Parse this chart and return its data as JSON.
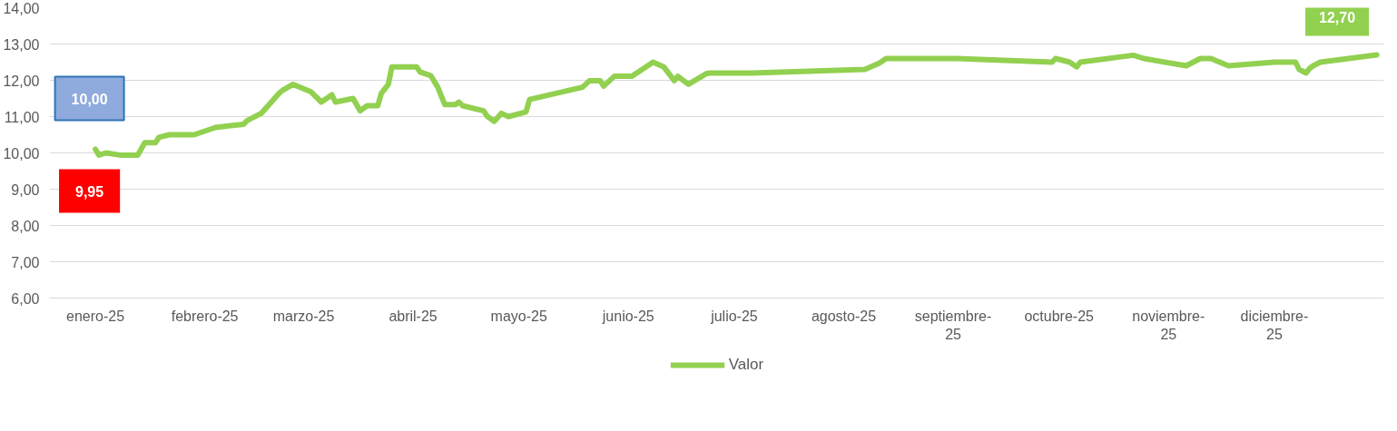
{
  "chart_data": {
    "type": "line",
    "x": [
      "2025-01-01",
      "2025-01-02",
      "2025-01-04",
      "2025-01-08",
      "2025-01-13",
      "2025-01-15",
      "2025-01-18",
      "2025-01-19",
      "2025-01-22",
      "2025-01-29",
      "2025-02-04",
      "2025-02-12",
      "2025-02-13",
      "2025-02-17",
      "2025-02-22",
      "2025-02-23",
      "2025-02-26",
      "2025-03-03",
      "2025-03-06",
      "2025-03-09",
      "2025-03-10",
      "2025-03-15",
      "2025-03-17",
      "2025-03-19",
      "2025-03-22",
      "2025-03-23",
      "2025-03-25",
      "2025-03-26",
      "2025-04-02",
      "2025-04-03",
      "2025-04-06",
      "2025-04-08",
      "2025-04-10",
      "2025-04-13",
      "2025-04-14",
      "2025-04-15",
      "2025-04-21",
      "2025-04-22",
      "2025-04-24",
      "2025-04-26",
      "2025-04-28",
      "2025-05-03",
      "2025-05-04",
      "2025-05-19",
      "2025-05-21",
      "2025-05-24",
      "2025-05-25",
      "2025-05-28",
      "2025-06-02",
      "2025-06-08",
      "2025-06-11",
      "2025-06-14",
      "2025-06-15",
      "2025-06-18",
      "2025-06-23",
      "2025-06-24",
      "2025-07-06",
      "2025-08-07",
      "2025-08-11",
      "2025-08-13",
      "2025-09-02",
      "2025-09-29",
      "2025-09-30",
      "2025-10-04",
      "2025-10-06",
      "2025-10-07",
      "2025-10-22",
      "2025-10-25",
      "2025-11-06",
      "2025-11-08",
      "2025-11-10",
      "2025-11-13",
      "2025-11-18",
      "2025-12-01",
      "2025-12-07",
      "2025-12-08",
      "2025-12-10",
      "2025-12-11",
      "2025-12-12",
      "2025-12-14",
      "2025-12-30"
    ],
    "series": [
      {
        "name": "Valor",
        "color": "#92d050",
        "values": [
          10.1,
          9.94,
          10.0,
          9.94,
          9.94,
          10.28,
          10.28,
          10.43,
          10.5,
          10.5,
          10.7,
          10.79,
          10.89,
          11.09,
          11.64,
          11.72,
          11.89,
          11.69,
          11.4,
          11.6,
          11.4,
          11.5,
          11.16,
          11.3,
          11.3,
          11.64,
          11.89,
          12.37,
          12.37,
          12.23,
          12.13,
          11.81,
          11.33,
          11.33,
          11.4,
          11.3,
          11.16,
          11.01,
          10.87,
          11.09,
          11.0,
          11.13,
          11.47,
          11.81,
          11.99,
          11.99,
          11.84,
          12.11,
          12.11,
          12.5,
          12.37,
          11.99,
          12.11,
          11.89,
          12.18,
          12.2,
          12.2,
          12.3,
          12.47,
          12.6,
          12.6,
          12.5,
          12.6,
          12.5,
          12.37,
          12.5,
          12.69,
          12.6,
          12.4,
          12.5,
          12.6,
          12.6,
          12.4,
          12.5,
          12.5,
          12.3,
          12.2,
          12.33,
          12.4,
          12.5,
          12.7
        ]
      }
    ],
    "xlim": [
      "2024-12-19",
      "2026-01-01"
    ],
    "xticks": [
      {
        "value": "2025-01-01",
        "label": "enero-25"
      },
      {
        "value": "2025-02-01",
        "label": "febrero-25"
      },
      {
        "value": "2025-03-01",
        "label": "marzo-25"
      },
      {
        "value": "2025-04-01",
        "label": "abril-25"
      },
      {
        "value": "2025-05-01",
        "label": "mayo-25"
      },
      {
        "value": "2025-06-01",
        "label": "junio-25"
      },
      {
        "value": "2025-07-01",
        "label": "julio-25"
      },
      {
        "value": "2025-08-01",
        "label": "agosto-25"
      },
      {
        "value": "2025-09-01",
        "label": "septiembre-25"
      },
      {
        "value": "2025-10-01",
        "label": "octubre-25"
      },
      {
        "value": "2025-11-01",
        "label": "noviembre-25"
      },
      {
        "value": "2025-12-01",
        "label": "diciembre-25"
      }
    ],
    "ylim": [
      6,
      14
    ],
    "yticks": [
      {
        "value": 6,
        "label": "6,00"
      },
      {
        "value": 7,
        "label": "7,00"
      },
      {
        "value": 8,
        "label": "8,00"
      },
      {
        "value": 9,
        "label": "9,00"
      },
      {
        "value": 10,
        "label": "10,00"
      },
      {
        "value": 11,
        "label": "11,00"
      },
      {
        "value": 12,
        "label": "12,00"
      },
      {
        "value": 13,
        "label": "13,00"
      },
      {
        "value": 14,
        "label": "14,00"
      }
    ],
    "annotations": [
      "10,00",
      "9,95",
      "12,70"
    ],
    "grid": "y",
    "legend": "bottom",
    "marker": "none",
    "line_style": "solid"
  }
}
